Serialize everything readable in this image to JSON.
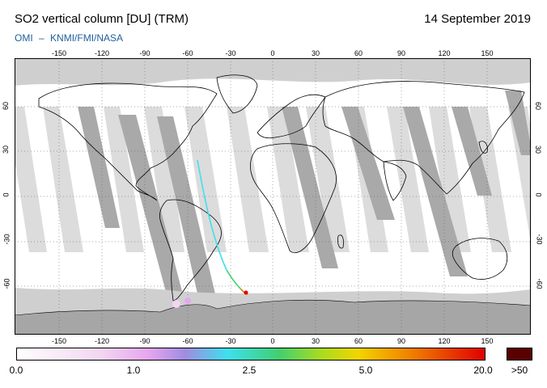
{
  "header": {
    "title": "SO2 vertical column [DU] (TRM)",
    "date": "14 September 2019",
    "credit": [
      "OMI",
      "–",
      "KNMI/FMI/NASA"
    ]
  },
  "axes": {
    "lon_ticks": [
      "-150",
      "-120",
      "-90",
      "-60",
      "-30",
      "0",
      "30",
      "60",
      "90",
      "120",
      "150"
    ],
    "lat_ticks": [
      "60",
      "30",
      "0",
      "-30",
      "-60"
    ]
  },
  "colorbar": {
    "labels": [
      "0.0",
      "1.0",
      "2.5",
      "5.0",
      "20.0",
      ">50"
    ],
    "colors": [
      "#ffffff",
      "#f2d6f2",
      "#e6a6ee",
      "#a08ce0",
      "#3ee0ee",
      "#40d070",
      "#a8dc20",
      "#f4d400",
      "#f07a00",
      "#e00000",
      "#5a0000"
    ]
  },
  "map": {
    "projection": "equirectangular",
    "lon_range": [
      -180,
      180
    ],
    "lat_range": [
      -90,
      90
    ],
    "colors": {
      "ocean": "#ffffff",
      "swath_gap": "#a9a9a9",
      "polar_no_data": "#d3d3d3",
      "antarctica": "#a6a6a6",
      "coast": "#000000"
    }
  }
}
